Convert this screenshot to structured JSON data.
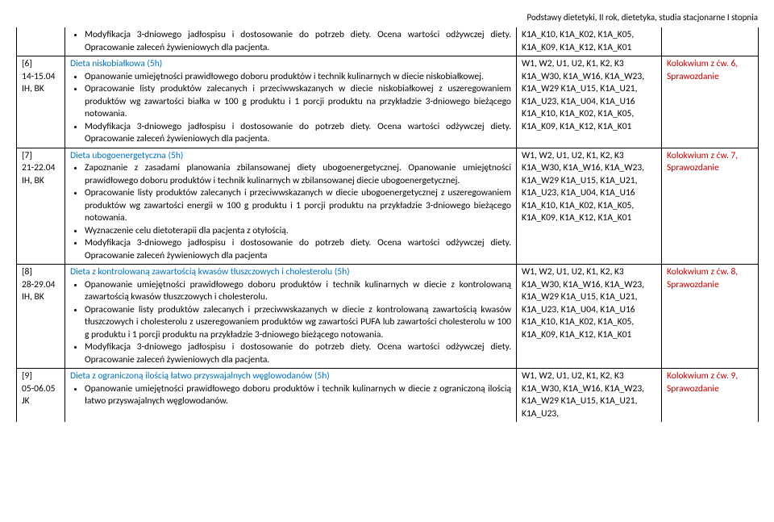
{
  "header": "Podstawy dietetyki, II rok, dietetyka, studia stacjonarne I stopnia",
  "row0": {
    "b1": "Modyfikacja 3-dniowego jadłospisu i dostosowanie do potrzeb diety. Ocena wartości odżywczej diety. Opracowanie zaleceń żywieniowych dla pacjenta.",
    "codes": "K1A_K10, K1A_K02, K1A_K05, K1A_K09, K1A_K12, K1A_K01"
  },
  "row6": {
    "id": "[6]",
    "date": "14-15.04",
    "staff": "IH, BK",
    "topic": "Dieta niskobiałkowa (5h)",
    "b1": "Opanowanie umiejętności prawidłowego doboru produktów i technik kulinarnych w diecie niskobiałkowej.",
    "b2": "Opracowanie listy produktów zalecanych i przeciwwskazanych w diecie niskobiałkowej z uszeregowaniem produktów wg zawartości białka w 100 g produktu i 1 porcji produktu na przykładzie 3-dniowego bieżącego notowania.",
    "b3": "Modyfikacja 3-dniowego jadłospisu i dostosowanie do potrzeb diety. Ocena wartości odżywczej diety. Opracowanie zaleceń żywieniowych dla pacjenta.",
    "codes": "W1, W2, U1, U2, K1, K2, K3 K1A_W30, K1A_W16, K1A_W23, K1A_W29 K1A_U15, K1A_U21, K1A_U23, K1A_U04, K1A_U16 K1A_K10, K1A_K02, K1A_K05, K1A_K09, K1A_K12, K1A_K01",
    "ex": "Kolokwium z ćw. 6, Sprawozdanie"
  },
  "row7": {
    "id": "[7]",
    "date": "21-22.04",
    "staff": "IH, BK",
    "topic": "Dieta ubogoenergetyczna (5h)",
    "b1": "Zapoznanie z zasadami planowania zbilansowanej diety ubogoenergetycznej. Opanowanie umiejętności prawidłowego doboru produktów i technik kulinarnych w zbilansowanej diecie ubogoenergetycznej.",
    "b2": "Opracowanie listy produktów zalecanych i przeciwwskazanych w diecie ubogoenergetycznej z uszeregowaniem produktów wg zawartości energii w 100 g produktu i 1 porcji produktu na przykładzie 3-dniowego bieżącego notowania.",
    "b3": "Wyznaczenie celu dietoterapii dla pacjenta z otyłością.",
    "b4": "Modyfikacja 3-dniowego jadłospisu i dostosowanie do potrzeb diety. Ocena wartości odżywczej diety. Opracowanie zaleceń żywieniowych dla pacjenta",
    "codes": "W1, W2, U1, U2, K1, K2, K3 K1A_W30, K1A_W16, K1A_W23, K1A_W29 K1A_U15, K1A_U21, K1A_U23, K1A_U04, K1A_U16 K1A_K10, K1A_K02, K1A_K05, K1A_K09, K1A_K12, K1A_K01",
    "ex": "Kolokwium z ćw. 7, Sprawozdanie"
  },
  "row8": {
    "id": "[8]",
    "date": "28-29.04",
    "staff": "IH, BK",
    "topic": "Dieta z kontrolowaną zawartością kwasów tłuszczowych i cholesterolu (5h)",
    "b1": "Opanowanie umiejętności prawidłowego doboru produktów i technik kulinarnych w diecie z kontrolowaną zawartością kwasów tłuszczowych i cholesterolu.",
    "b2": "Opracowanie listy produktów zalecanych i przeciwwskazanych w diecie z kontrolowaną zawartością kwasów tłuszczowych i cholesterolu z uszeregowaniem produktów wg zawartości PUFA lub zawartości cholesterolu w 100 g produktu i 1 porcji produktu na przykładzie 3-dniowego bieżącego notowania.",
    "b3": "Modyfikacja 3-dniowego jadłospisu i dostosowanie do potrzeb diety. Ocena wartości odżywczej diety. Opracowanie zaleceń żywieniowych dla pacjenta.",
    "codes": "W1, W2, U1, U2, K1, K2, K3 K1A_W30, K1A_W16, K1A_W23, K1A_W29 K1A_U15, K1A_U21, K1A_U23, K1A_U04, K1A_U16 K1A_K10, K1A_K02, K1A_K05, K1A_K09, K1A_K12, K1A_K01",
    "ex": "Kolokwium z ćw. 8, Sprawozdanie"
  },
  "row9": {
    "id": "[9]",
    "date": "05-06.05",
    "staff": "JK",
    "topic": "Dieta z ograniczoną ilością łatwo przyswajalnych węglowodanów (5h)",
    "b1": "Opanowanie umiejętności prawidłowego doboru produktów i technik kulinarnych w diecie z ograniczoną ilością łatwo przyswajalnych węglowodanów.",
    "codes": "W1, W2, U1, U2, K1, K2, K3 K1A_W30, K1A_W16, K1A_W23, K1A_W29 K1A_U15, K1A_U21, K1A_U23,",
    "ex": "Kolokwium z ćw. 9, Sprawozdanie"
  }
}
